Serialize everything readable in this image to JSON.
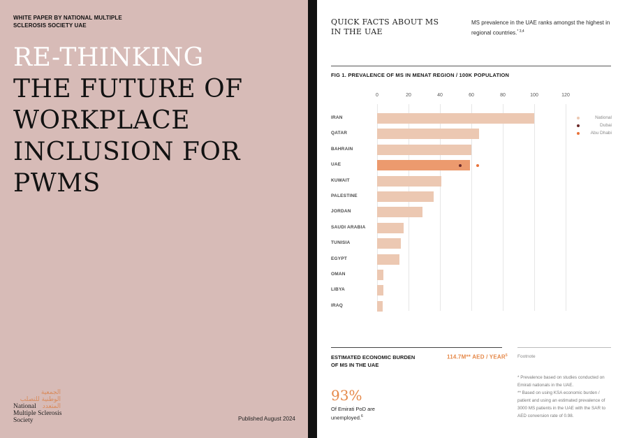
{
  "cover": {
    "kicker": "WHITE PAPER BY NATIONAL MULTIPLE SCLEROSIS SOCIETY UAE",
    "headline_light": "RE-THINKING",
    "headline_lines": [
      "THE FUTURE OF",
      "WORKPLACE",
      "INCLUSION FOR",
      "PWMS"
    ],
    "logo_arabic_lines": [
      "الجمعية",
      "الوطنية للتصلب",
      "المتعدد"
    ],
    "logo_english_lines": [
      "National",
      "Multiple Sclerosis",
      "Society"
    ],
    "published": "Published August 2024"
  },
  "facts": {
    "title": "QUICK FACTS ABOUT MS IN THE UAE",
    "text": "MS prevalence in the UAE ranks amongst the highest in regional countries.",
    "text_sup": "* 3,4"
  },
  "figure": {
    "title": "FIG 1. PREVALENCE OF MS IN MENAT REGION / 100K POPULATION"
  },
  "chart_data": {
    "type": "bar",
    "orientation": "horizontal",
    "title": "FIG 1. PREVALENCE OF MS IN MENAT REGION / 100K POPULATION",
    "xlim": [
      0,
      120
    ],
    "ticks": [
      0,
      20,
      40,
      60,
      80,
      100,
      120
    ],
    "categories": [
      "IRAN",
      "QATAR",
      "BAHRAIN",
      "UAE",
      "KUWAIT",
      "PALESTINE",
      "JORDAN",
      "SAUDI ARABIA",
      "TUNISIA",
      "EGYPT",
      "OMAN",
      "LIBYA",
      "IRAQ"
    ],
    "values": [
      100,
      65,
      60,
      59,
      41,
      36,
      29,
      17,
      15,
      14,
      4,
      4,
      3.5
    ],
    "highlight": "UAE",
    "markers": [
      {
        "category": "UAE",
        "series": "Dubai",
        "value": 53
      },
      {
        "category": "UAE",
        "series": "Abu Dhabi",
        "value": 64
      }
    ],
    "legend": [
      {
        "name": "National",
        "color": "#ecc8b2"
      },
      {
        "name": "Dubai",
        "color": "#6b2a2a"
      },
      {
        "name": "Abu Dhabi",
        "color": "#e8733a"
      }
    ],
    "legend_position": "top-right"
  },
  "economic": {
    "title": "ESTIMATED ECONOMIC BURDEN OF MS IN THE UAE",
    "value": "114.7M** AED / YEAR",
    "value_sup": "5"
  },
  "employment": {
    "percent": "93%",
    "label": "Of Emirati PoD are unemployed.",
    "label_sup": "6"
  },
  "footnote": {
    "title": "Footnote",
    "lines": [
      "* Prevalence based on studies conducted on Emirati nationals in the UAE.",
      "** Based on using KSA economic burden / patient and using an estimated prevalence of 3000 MS patients in the UAE with the SAR to AED conversion rate of 0.98."
    ]
  }
}
